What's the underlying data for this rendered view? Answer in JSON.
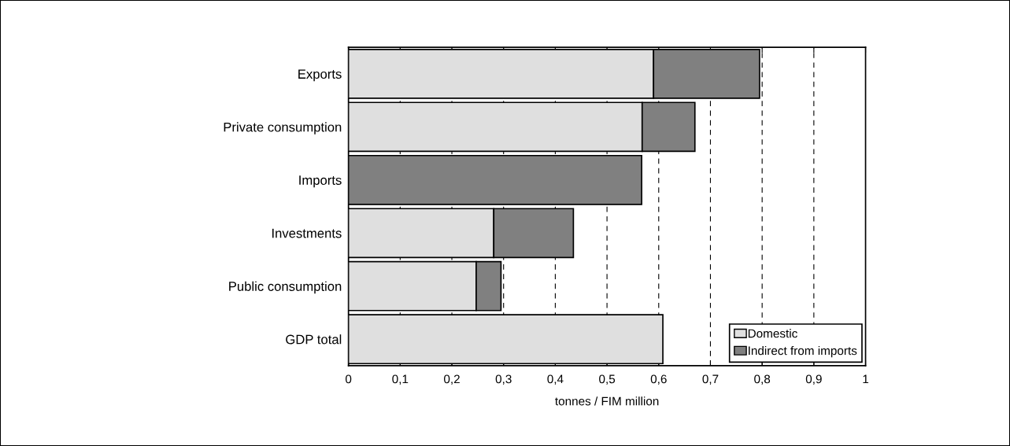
{
  "chart_data": {
    "type": "bar",
    "orientation": "horizontal",
    "stacked": true,
    "xlabel": "tonnes / FIM million",
    "categories": [
      "Exports",
      "Private consumption",
      "Imports",
      "Investments",
      "Public consumption",
      "GDP total"
    ],
    "series": [
      {
        "name": "Domestic",
        "color": "#dfdfdf",
        "values": [
          0.59,
          0.568,
          null,
          0.281,
          0.247,
          0.608
        ]
      },
      {
        "name": "Indirect from imports",
        "color": "#808080",
        "values": [
          0.205,
          0.102,
          0.567,
          0.154,
          0.048,
          null
        ]
      }
    ],
    "xlim": [
      0,
      1
    ],
    "xticks": [
      0,
      {
        "value": 0.1,
        "label": "0,1"
      },
      {
        "value": 0.2,
        "label": "0,2"
      },
      {
        "value": 0.3,
        "label": "0,3"
      },
      {
        "value": 0.4,
        "label": "0,4"
      },
      {
        "value": 0.5,
        "label": "0,5"
      },
      {
        "value": 0.6,
        "label": "0,6"
      },
      {
        "value": 0.7,
        "label": "0,7"
      },
      {
        "value": 0.8,
        "label": "0,8"
      },
      {
        "value": 0.9,
        "label": "0,9"
      },
      1
    ],
    "grid": "x",
    "legend": "bottom right"
  }
}
